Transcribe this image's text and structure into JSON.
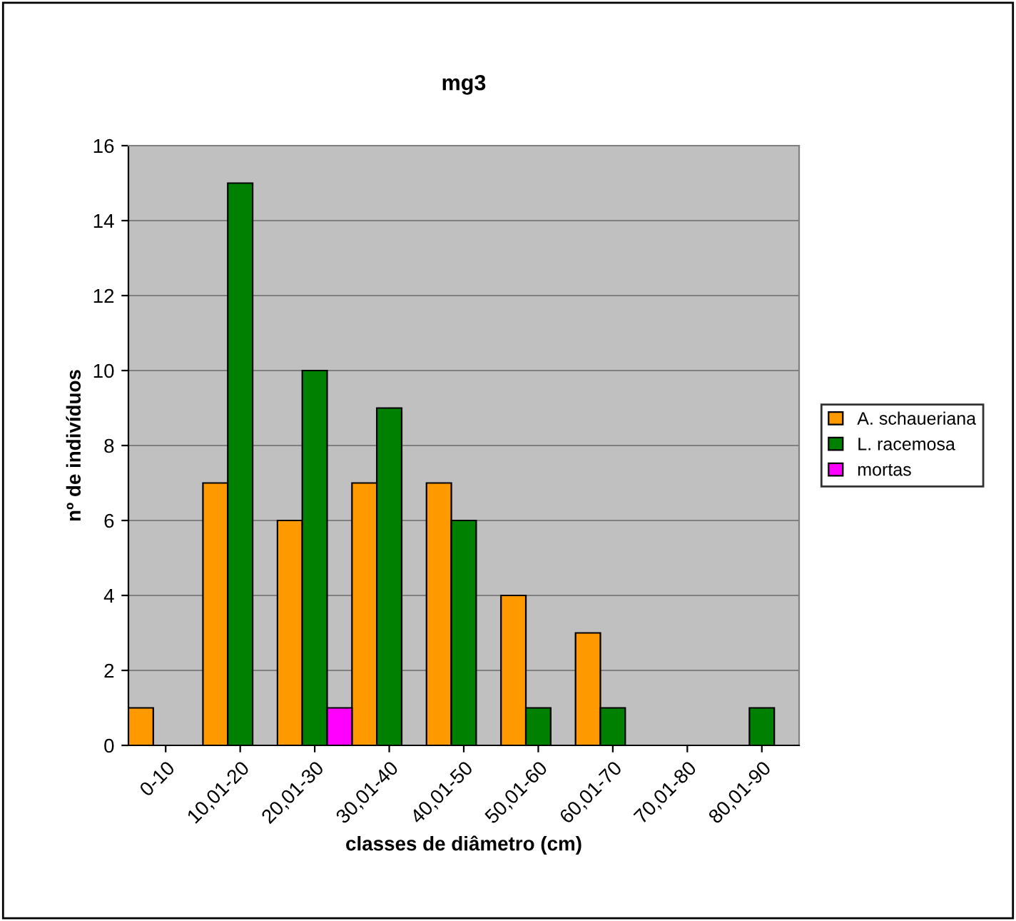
{
  "chart_data": {
    "type": "bar",
    "title": "mg3",
    "xlabel": "classes de diâmetro (cm)",
    "ylabel": "nº de indivíduos",
    "categories": [
      "0-10",
      "10,01-20",
      "20,01-30",
      "30,01-40",
      "40,01-50",
      "50,01-60",
      "60,01-70",
      "70,01-80",
      "80,01-90"
    ],
    "series": [
      {
        "name": "A. schaueriana",
        "color": "#ff9900",
        "values": [
          1,
          7,
          6,
          7,
          7,
          4,
          3,
          0,
          0
        ]
      },
      {
        "name": "L. racemosa",
        "color": "#008000",
        "values": [
          0,
          15,
          10,
          9,
          6,
          1,
          1,
          0,
          1
        ]
      },
      {
        "name": "mortas",
        "color": "#ff00ff",
        "values": [
          0,
          0,
          1,
          0,
          0,
          0,
          0,
          0,
          0
        ]
      }
    ],
    "ylim": [
      0,
      16
    ],
    "yticks": [
      0,
      2,
      4,
      6,
      8,
      10,
      12,
      14,
      16
    ],
    "grid": "y",
    "legend": "right"
  }
}
